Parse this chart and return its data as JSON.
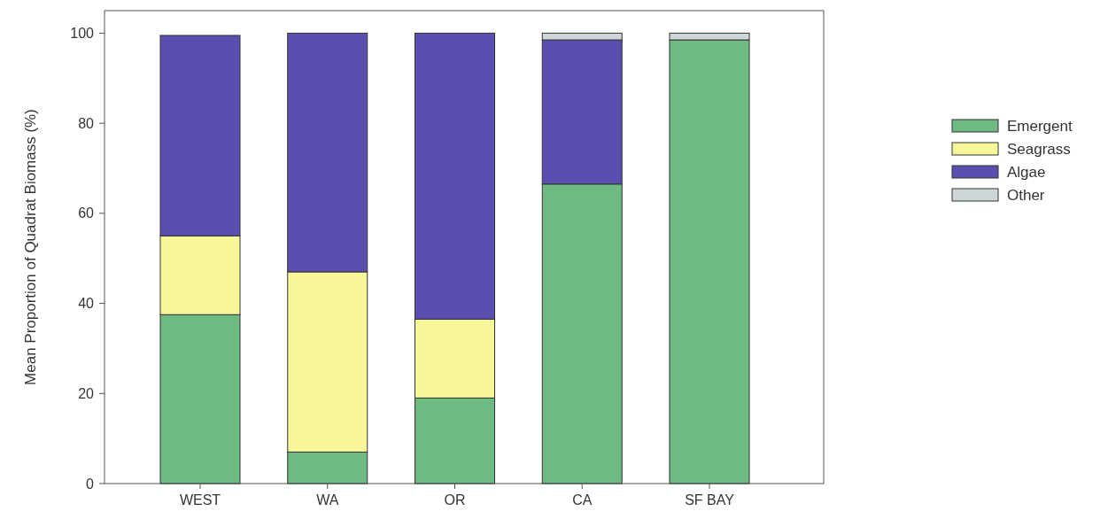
{
  "chart_data": {
    "type": "bar",
    "stacked": true,
    "ylabel": "Mean Proportion of Quadrat Biomass (%)",
    "categories": [
      "WEST",
      "WA",
      "OR",
      "CA",
      "SF BAY"
    ],
    "series": [
      {
        "name": "Emergent",
        "color": "#6dbb82",
        "values": [
          37.5,
          7,
          19,
          66.5,
          98.5
        ]
      },
      {
        "name": "Seagrass",
        "color": "#f7f79a",
        "values": [
          17.5,
          40,
          17.5,
          0,
          0
        ]
      },
      {
        "name": "Algae",
        "color": "#5a4eb0",
        "values": [
          44.5,
          53,
          63.5,
          32,
          0
        ]
      },
      {
        "name": "Other",
        "color": "#ced6d8",
        "values": [
          0,
          0,
          0,
          1.5,
          1.5
        ]
      }
    ],
    "ylim": [
      0,
      105
    ],
    "yticks": [
      0,
      20,
      40,
      60,
      80,
      100
    ],
    "legend": "right"
  }
}
